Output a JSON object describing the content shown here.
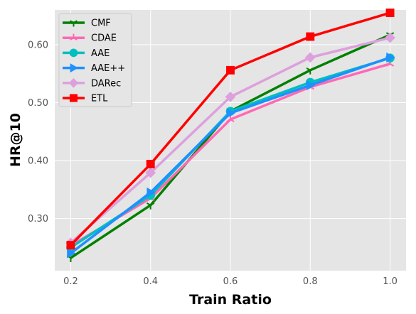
{
  "chart_data": {
    "type": "line",
    "xlabel": "Train Ratio",
    "ylabel": "HR@10",
    "x": [
      0.2,
      0.4,
      0.6,
      0.8,
      1.0
    ],
    "xticks": [
      "0.2",
      "0.4",
      "0.6",
      "0.8",
      "1.0"
    ],
    "yticks": [
      "0.30",
      "0.40",
      "0.50",
      "0.60"
    ],
    "ytick_values": [
      0.3,
      0.4,
      0.5,
      0.6
    ],
    "xlim": [
      0.16,
      1.04
    ],
    "ylim": [
      0.21,
      0.66
    ],
    "grid": true,
    "legend_position": "upper-left",
    "background": "#e5e5e5",
    "series": [
      {
        "name": "CMF",
        "color": "#008000",
        "marker": "tri_down",
        "values": [
          0.232,
          0.323,
          0.485,
          0.556,
          0.617
        ]
      },
      {
        "name": "CDAE",
        "color": "#ff69b4",
        "marker": "tri_up",
        "values": [
          0.253,
          0.335,
          0.471,
          0.527,
          0.567
        ]
      },
      {
        "name": "AAE",
        "color": "#00bfbf",
        "marker": "circle",
        "values": [
          0.25,
          0.34,
          0.485,
          0.535,
          0.577
        ]
      },
      {
        "name": "AAE++",
        "color": "#1e90ff",
        "marker": "triangle-right",
        "values": [
          0.24,
          0.345,
          0.482,
          0.53,
          0.578
        ]
      },
      {
        "name": "DARec",
        "color": "#dda0dd",
        "marker": "diamond",
        "values": [
          0.258,
          0.379,
          0.51,
          0.578,
          0.612
        ]
      },
      {
        "name": "ETL",
        "color": "#ff0000",
        "marker": "square",
        "values": [
          0.254,
          0.394,
          0.556,
          0.614,
          0.655
        ]
      }
    ]
  }
}
